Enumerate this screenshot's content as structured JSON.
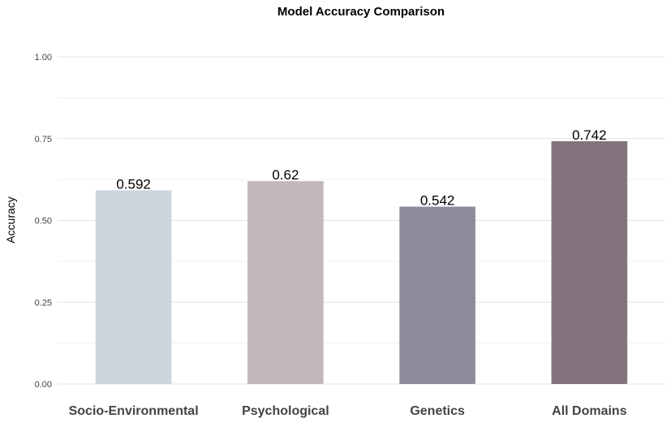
{
  "chart_data": {
    "type": "bar",
    "title": "Model Accuracy Comparison",
    "xlabel": "",
    "ylabel": "Accuracy",
    "ylim": [
      0,
      1
    ],
    "yticks": [
      0,
      0.25,
      0.5,
      0.75,
      1
    ],
    "ytick_labels": [
      "0.00",
      "0.25",
      "0.50",
      "0.75",
      "1.00"
    ],
    "categories": [
      "Socio-Environmental",
      "Psychological",
      "Genetics",
      "All Domains"
    ],
    "values": [
      0.592,
      0.62,
      0.542,
      0.742
    ],
    "value_labels": [
      "0.592",
      "0.62",
      "0.542",
      "0.742"
    ],
    "colors": [
      "#cdd6de",
      "#c2b7bc",
      "#8f8b9c",
      "#83737d"
    ],
    "grid": true,
    "legend": "none"
  }
}
